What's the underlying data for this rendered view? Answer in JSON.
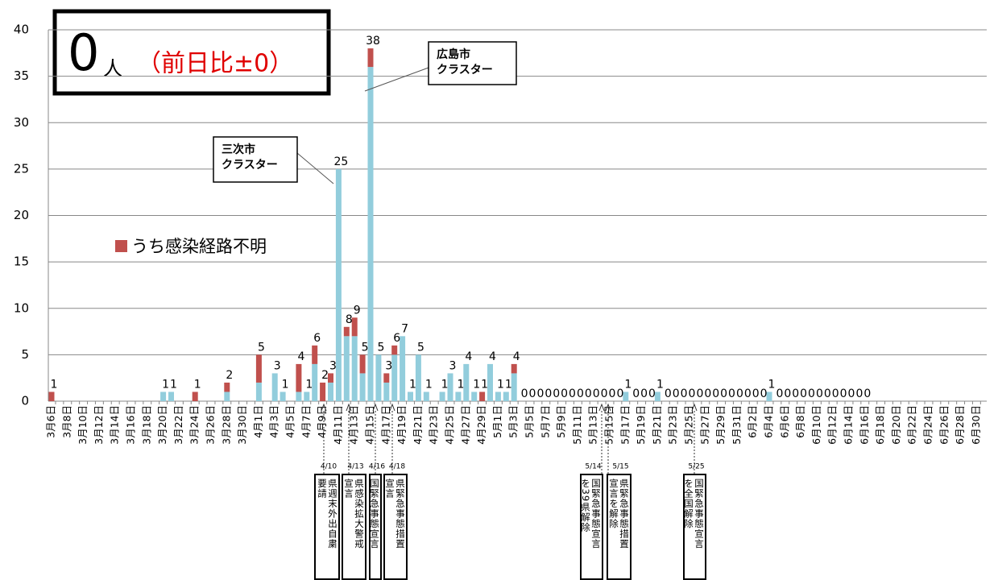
{
  "chart_data": {
    "type": "bar",
    "box": {
      "count": "0",
      "unit": "人",
      "compare": "（前日比±0）"
    },
    "categories": [
      "3月6日",
      null,
      "3月8日",
      null,
      "3月10日",
      null,
      "3月12日",
      null,
      "3月14日",
      null,
      "3月16日",
      null,
      "3月18日",
      null,
      "3月20日",
      null,
      "3月22日",
      null,
      "3月24日",
      null,
      "3月26日",
      null,
      "3月28日",
      null,
      "3月30日",
      null,
      "4月1日",
      null,
      "4月3日",
      null,
      "4月5日",
      null,
      "4月7日",
      null,
      "4月9日",
      null,
      "4月11日",
      null,
      "4月13日",
      null,
      "4月15日",
      null,
      "4月17日",
      null,
      "4月19日",
      null,
      "4月21日",
      null,
      "4月23日",
      null,
      "4月25日",
      null,
      "4月27日",
      null,
      "4月29日",
      null,
      "5月1日",
      null,
      "5月3日",
      null,
      "5月5日",
      null,
      "5月7日",
      null,
      "5月9日",
      null,
      "5月11日",
      null,
      "5月13日",
      null,
      "5月15日",
      null,
      "5月17日",
      null,
      "5月19日",
      null,
      "5月21日",
      null,
      "5月23日",
      null,
      "5月25日",
      null,
      "5月27日",
      null,
      "5月29日",
      null,
      "5月31日",
      null,
      "6月2日",
      null,
      "6月4日",
      null,
      "6月6日",
      null,
      "6月8日",
      null,
      "6月10日",
      null,
      "6月12日",
      null,
      "6月14日",
      null,
      "6月16日",
      null,
      "6月18日",
      null,
      "6月20日",
      null,
      "6月22日",
      null,
      "6月24日",
      null,
      "6月26日",
      null,
      "6月28日",
      null,
      "6月30日"
    ],
    "series": [
      {
        "color": "#92cddc",
        "values": [
          0,
          0,
          0,
          0,
          0,
          0,
          0,
          0,
          0,
          0,
          0,
          0,
          0,
          0,
          1,
          1,
          0,
          0,
          0,
          0,
          0,
          0,
          1,
          0,
          0,
          0,
          2,
          0,
          3,
          1,
          0,
          1,
          1,
          4,
          0,
          2,
          25,
          7,
          7,
          3,
          36,
          5,
          2,
          5,
          7,
          1,
          5,
          1,
          0,
          1,
          3,
          1,
          4,
          1,
          0,
          4,
          1,
          1,
          3,
          0,
          0,
          0,
          0,
          0,
          0,
          0,
          0,
          0,
          0,
          0,
          0,
          0,
          1,
          0,
          0,
          0,
          1,
          0,
          0,
          0,
          0,
          0,
          0,
          0,
          0,
          0,
          0,
          0,
          0,
          0,
          1,
          0,
          0,
          0,
          0,
          0,
          0,
          0,
          0,
          0,
          0,
          0,
          0,
          null,
          null,
          null,
          null,
          null,
          null,
          null,
          null,
          null,
          null,
          null,
          null,
          null,
          null
        ]
      },
      {
        "name": "うち感染経路不明",
        "color": "#c0504d",
        "values": [
          1,
          0,
          0,
          0,
          0,
          0,
          0,
          0,
          0,
          0,
          0,
          0,
          0,
          0,
          0,
          0,
          0,
          0,
          1,
          0,
          0,
          0,
          1,
          0,
          0,
          0,
          3,
          0,
          0,
          0,
          0,
          3,
          0,
          2,
          2,
          1,
          0,
          1,
          2,
          2,
          2,
          0,
          1,
          1,
          0,
          0,
          0,
          0,
          0,
          0,
          0,
          0,
          0,
          0,
          1,
          0,
          0,
          0,
          1,
          0,
          0,
          0,
          0,
          0,
          0,
          0,
          0,
          0,
          0,
          0,
          0,
          0,
          0,
          0,
          0,
          0,
          0,
          0,
          0,
          0,
          0,
          0,
          0,
          0,
          0,
          0,
          0,
          0,
          0,
          0,
          0,
          0,
          0,
          0,
          0,
          0,
          0,
          0,
          0,
          0,
          0,
          0,
          0,
          null,
          null,
          null,
          null,
          null,
          null,
          null,
          null,
          null,
          null,
          null,
          null,
          null,
          null
        ]
      }
    ],
    "value_labels": [
      1,
      null,
      null,
      null,
      null,
      null,
      null,
      null,
      null,
      null,
      null,
      null,
      null,
      null,
      1,
      1,
      null,
      null,
      1,
      null,
      null,
      null,
      2,
      null,
      null,
      null,
      5,
      null,
      3,
      1,
      null,
      4,
      1,
      6,
      2,
      3,
      25,
      8,
      9,
      5,
      38,
      5,
      3,
      6,
      7,
      1,
      5,
      1,
      null,
      1,
      3,
      1,
      4,
      1,
      1,
      4,
      1,
      1,
      4,
      0,
      0,
      0,
      0,
      0,
      0,
      0,
      0,
      0,
      0,
      0,
      0,
      0,
      1,
      0,
      0,
      0,
      1,
      0,
      0,
      0,
      0,
      0,
      0,
      0,
      0,
      0,
      0,
      0,
      0,
      0,
      1,
      0,
      0,
      0,
      0,
      0,
      0,
      0,
      0,
      0,
      0,
      0,
      0,
      null,
      null,
      null,
      null,
      null,
      null,
      null,
      null,
      null,
      null,
      null,
      null,
      null,
      null
    ],
    "ylim": [
      0,
      40
    ],
    "yticks": [
      0,
      5,
      10,
      15,
      20,
      25,
      30,
      35,
      40
    ],
    "grid": true,
    "stacked": true,
    "annotations": [
      [
        "三次市",
        "クラスター"
      ],
      [
        "広島市",
        "クラスター"
      ]
    ],
    "events": [
      {
        "date": "4/10",
        "text": [
          "県週末外出自粛",
          "要請"
        ]
      },
      {
        "date": "4/13",
        "text": [
          "県感染拡大警戒",
          "宣言"
        ]
      },
      {
        "date": "4/16",
        "text": [
          "国緊急事態宣言"
        ]
      },
      {
        "date": "4/18",
        "text": [
          "県緊急事態措置",
          "宣言"
        ]
      },
      {
        "date": "5/14",
        "text": [
          "国緊急事態宣言",
          "を39県解除"
        ]
      },
      {
        "date": "5/15",
        "text": [
          "県緊急事態措置",
          "宣言を解除"
        ]
      },
      {
        "date": "5/25",
        "text": [
          "国緊急事態宣言",
          "を全国解除"
        ]
      }
    ]
  }
}
